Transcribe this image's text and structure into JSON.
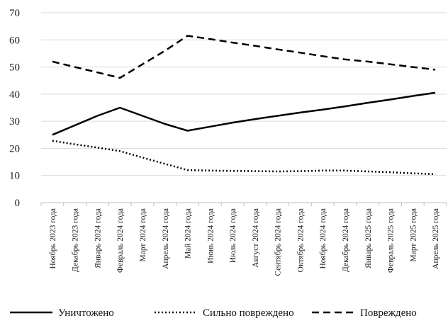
{
  "chart_data": {
    "type": "line",
    "title": "",
    "xlabel": "",
    "ylabel": "",
    "ylim": [
      0,
      70
    ],
    "yticks": [
      0,
      10,
      20,
      30,
      40,
      50,
      60,
      70
    ],
    "grid": true,
    "legend_position": "bottom",
    "categories": [
      "Ноябрь 2023 года",
      "Декабрь 2023 года",
      "Январь 2024 года",
      "Февраль 2024 года",
      "Март 2024 года",
      "Апрель 2024 года",
      "Май 2024 года",
      "Июнь 2024 года",
      "Июль 2024 года",
      "Август 2024 года",
      "Сентябрь 2024 года",
      "Октябрь 2024 года",
      "Ноябрь 2024 года",
      "Декабрь 2024 года",
      "Январь 2025 года",
      "Февраль 2025 года",
      "Март 2025 года",
      "Апрель 2025 года"
    ],
    "series": [
      {
        "name": "Уничтожено",
        "style": "solid",
        "color": "#000000",
        "values": [
          25,
          28.5,
          32,
          35,
          32,
          29,
          26.5,
          28,
          29.5,
          30.8,
          32,
          33.2,
          34.3,
          35.5,
          36.8,
          38,
          39.3,
          40.5
        ]
      },
      {
        "name": "Сильно повреждено",
        "style": "dotted",
        "color": "#000000",
        "values": [
          22.8,
          21.5,
          20.3,
          19,
          16.6,
          14.3,
          12,
          11.8,
          11.7,
          11.6,
          11.5,
          11.6,
          11.8,
          11.8,
          11.5,
          11.2,
          10.8,
          10.5
        ]
      },
      {
        "name": "Повреждено",
        "style": "dashed",
        "color": "#000000",
        "values": [
          52,
          50,
          48,
          46,
          51,
          56,
          61.5,
          60.3,
          59,
          57.8,
          56.5,
          55.3,
          54,
          52.8,
          52,
          51,
          50,
          49
        ]
      }
    ]
  }
}
